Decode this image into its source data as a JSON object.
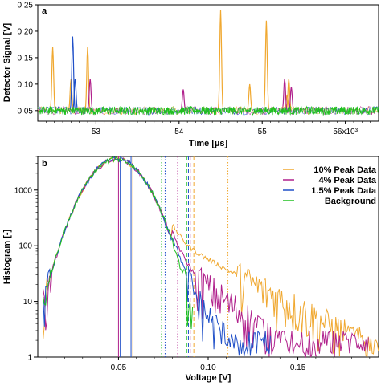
{
  "chart_data": [
    {
      "panel": "a",
      "type": "line",
      "xlabel": "Time [µs]",
      "ylabel": "Detector Signal [V]",
      "xlim": [
        52.3,
        56.4
      ],
      "ylim": [
        0.03,
        0.25
      ],
      "x_ticks": [
        53,
        54,
        55
      ],
      "x_tick_labels": [
        "53",
        "54",
        "55"
      ],
      "x_multiplier_tick": 56,
      "x_multiplier_label": "56x10³",
      "y_ticks": [
        0.05,
        0.1,
        0.15,
        0.2,
        0.25
      ],
      "y_tick_labels": [
        "0.05",
        "0.10",
        "0.15",
        "0.20",
        "0.25"
      ],
      "baseline": 0.05,
      "noise_amplitude": 0.008,
      "series": [
        {
          "color": "#f0a830",
          "peaks": [
            [
              52.48,
              0.17
            ],
            [
              52.7,
              0.11
            ],
            [
              52.9,
              0.17
            ],
            [
              54.5,
              0.24
            ],
            [
              54.85,
              0.1
            ],
            [
              55.05,
              0.22
            ],
            [
              55.3,
              0.08
            ],
            [
              55.32,
              0.11
            ]
          ]
        },
        {
          "color": "#b0208c",
          "peaks": [
            [
              52.93,
              0.11
            ],
            [
              54.05,
              0.09
            ],
            [
              55.27,
              0.11
            ],
            [
              55.35,
              0.095
            ]
          ]
        },
        {
          "color": "#2050c8",
          "peaks": [
            [
              52.72,
              0.19
            ],
            [
              52.75,
              0.11
            ]
          ]
        },
        {
          "color": "#20c020",
          "peaks": []
        }
      ]
    },
    {
      "panel": "b",
      "type": "line",
      "xlabel": "Voltage [V]",
      "ylabel": "Histogram [-]",
      "xlim": [
        0.005,
        0.195
      ],
      "ylim": [
        1,
        4000
      ],
      "yscale": "log",
      "x_ticks": [
        0.05,
        0.1,
        0.15
      ],
      "x_tick_labels": [
        "0.05",
        "0.10",
        "0.15"
      ],
      "y_ticks": [
        1,
        10,
        100,
        1000
      ],
      "y_tick_labels": [
        "1",
        "10",
        "100",
        "1000"
      ],
      "legend_position": "top-right",
      "series": [
        {
          "name": "10% Peak Data",
          "color": "#f0a830",
          "tail": 4.2,
          "tail_decay": 0.025,
          "cutoff": 0.195
        },
        {
          "name": "4% Peak Data",
          "color": "#b0208c",
          "tail": 1.8,
          "tail_decay": 0.018,
          "cutoff": 0.19
        },
        {
          "name": "1.5% Peak Data",
          "color": "#2050c8",
          "tail": 0.9,
          "tail_decay": 0.012,
          "cutoff": 0.135
        },
        {
          "name": "Background",
          "color": "#20c020",
          "tail": 0.0,
          "tail_decay": 0.01,
          "cutoff": 0.092
        }
      ],
      "peak_center": 0.049,
      "peak_value": 3600,
      "vlines_solid": [
        {
          "x": 0.05,
          "color": "#b0208c"
        },
        {
          "x": 0.051,
          "color": "#2050c8"
        },
        {
          "x": 0.057,
          "color": "#2050c8"
        },
        {
          "x": 0.058,
          "color": "#f0a830"
        }
      ],
      "vlines_dotted": [
        {
          "x": 0.074,
          "color": "#20c020"
        },
        {
          "x": 0.076,
          "color": "#2050c8"
        },
        {
          "x": 0.083,
          "color": "#b0208c"
        },
        {
          "x": 0.111,
          "color": "#f0a830"
        }
      ],
      "vlines_dashed": [
        {
          "x": 0.088,
          "color": "#20c020"
        },
        {
          "x": 0.089,
          "color": "#2050c8"
        },
        {
          "x": 0.09,
          "color": "#b0208c"
        },
        {
          "x": 0.092,
          "color": "#f0a830"
        }
      ]
    }
  ]
}
